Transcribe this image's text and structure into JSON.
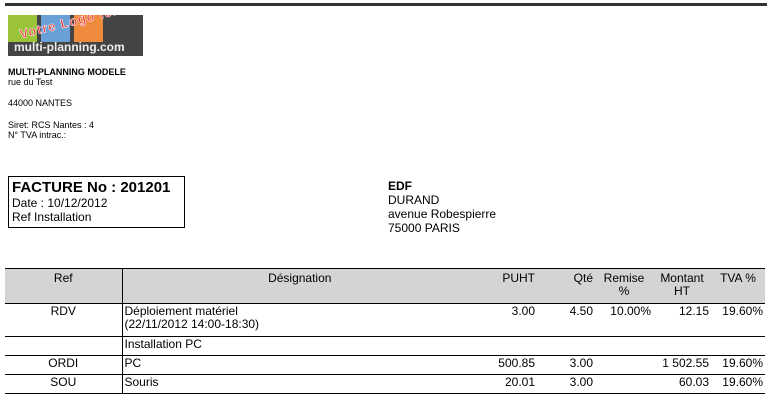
{
  "logo": {
    "text": "Votre Logo ici",
    "url": "multi-planning.com",
    "colors": [
      "#9bc43a",
      "#6aa0d8",
      "#f08a3c"
    ]
  },
  "company": {
    "name": "MULTI-PLANNING MODELE",
    "street": "rue du Test",
    "city": "44000 NANTES",
    "siret": "Siret: RCS Nantes : 4",
    "tva": "N° TVA intrac.:"
  },
  "invoice": {
    "title": "FACTURE No : 201201",
    "date": "Date : 10/12/2012",
    "ref": "Ref Installation"
  },
  "client": {
    "name": "EDF",
    "contact": "DURAND",
    "street": "avenue Robespierre",
    "city": "75000 PARIS"
  },
  "table": {
    "headers": [
      "Ref",
      "Désignation",
      "PUHT",
      "Qté",
      "Remise %",
      "Montant HT",
      "TVA %"
    ],
    "rows": [
      {
        "ref": "RDV",
        "designation": "Déploiement matériel",
        "designation2": "(22/11/2012 14:00-18:30)",
        "puht": "3.00",
        "qte": "4.50",
        "remise": "10.00%",
        "montant": "12.15",
        "tva": "19.60%"
      },
      {
        "ref": "",
        "designation": "Installation PC",
        "designation2": "",
        "puht": "",
        "qte": "",
        "remise": "",
        "montant": "",
        "tva": ""
      },
      {
        "ref": "ORDI",
        "designation": "PC",
        "designation2": "",
        "puht": "500.85",
        "qte": "3.00",
        "remise": "",
        "montant": "1 502.55",
        "tva": "19.60%"
      },
      {
        "ref": "SOU",
        "designation": "Souris",
        "designation2": "",
        "puht": "20.01",
        "qte": "3.00",
        "remise": "",
        "montant": "60.03",
        "tva": "19.60%"
      }
    ]
  }
}
